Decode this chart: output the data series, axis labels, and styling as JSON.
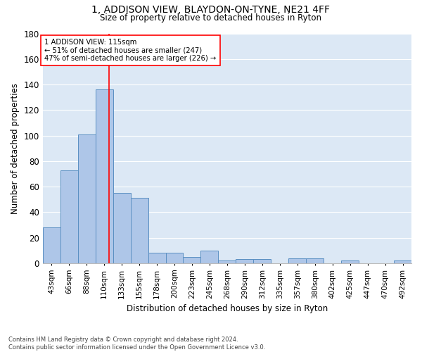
{
  "title1": "1, ADDISON VIEW, BLAYDON-ON-TYNE, NE21 4FF",
  "title2": "Size of property relative to detached houses in Ryton",
  "xlabel": "Distribution of detached houses by size in Ryton",
  "ylabel": "Number of detached properties",
  "categories": [
    "43sqm",
    "66sqm",
    "88sqm",
    "110sqm",
    "133sqm",
    "155sqm",
    "178sqm",
    "200sqm",
    "223sqm",
    "245sqm",
    "268sqm",
    "290sqm",
    "312sqm",
    "335sqm",
    "357sqm",
    "380sqm",
    "402sqm",
    "425sqm",
    "447sqm",
    "470sqm",
    "492sqm"
  ],
  "values": [
    28,
    73,
    101,
    136,
    55,
    51,
    8,
    8,
    5,
    10,
    2,
    3,
    3,
    0,
    4,
    4,
    0,
    2,
    0,
    0,
    2
  ],
  "bar_color": "#aec6e8",
  "bar_edge_color": "#5a8fc2",
  "background_color": "#dce8f5",
  "annotation_text": "1 ADDISON VIEW: 115sqm\n← 51% of detached houses are smaller (247)\n47% of semi-detached houses are larger (226) →",
  "property_line_x": 3.27,
  "ylim": [
    0,
    180
  ],
  "yticks": [
    0,
    20,
    40,
    60,
    80,
    100,
    120,
    140,
    160,
    180
  ],
  "footer": "Contains HM Land Registry data © Crown copyright and database right 2024.\nContains public sector information licensed under the Open Government Licence v3.0."
}
